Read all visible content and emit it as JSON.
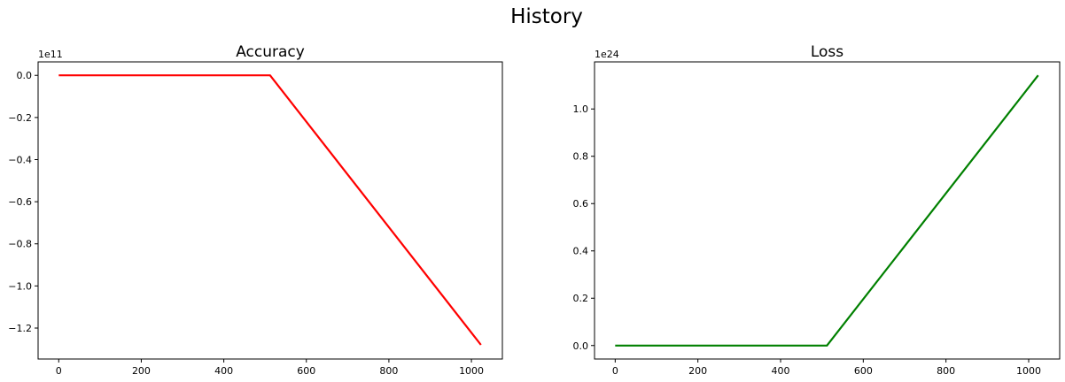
{
  "figure": {
    "suptitle": "History"
  },
  "chart_data": [
    {
      "type": "line",
      "title": "Accuracy",
      "xlabel": "",
      "ylabel": "",
      "y_scale_label": "1e11",
      "y_scale": 100000000000,
      "xlim": [
        -50,
        1075
      ],
      "ylim": [
        -1.347,
        0.064
      ],
      "xticks": [
        0,
        200,
        400,
        600,
        800,
        1000
      ],
      "xtick_labels": [
        "0",
        "200",
        "400",
        "600",
        "800",
        "1000"
      ],
      "yticks": [
        0.0,
        -0.2,
        -0.4,
        -0.6,
        -0.8,
        -1.0,
        -1.2
      ],
      "ytick_labels": [
        "0.0",
        "−0.2",
        "−0.4",
        "−0.6",
        "−0.8",
        "−1.0",
        "−1.2"
      ],
      "grid": false,
      "series": [
        {
          "color": "#ff0000",
          "x": [
            0,
            512,
            1023
          ],
          "y": [
            0.0,
            0.0,
            -1.28
          ]
        }
      ]
    },
    {
      "type": "line",
      "title": "Loss",
      "xlabel": "",
      "ylabel": "",
      "y_scale_label": "1e24",
      "y_scale": 1e+24,
      "xlim": [
        -50,
        1075
      ],
      "ylim": [
        -0.057,
        1.199
      ],
      "xticks": [
        0,
        200,
        400,
        600,
        800,
        1000
      ],
      "xtick_labels": [
        "0",
        "200",
        "400",
        "600",
        "800",
        "1000"
      ],
      "yticks": [
        0.0,
        0.2,
        0.4,
        0.6,
        0.8,
        1.0
      ],
      "ytick_labels": [
        "0.0",
        "0.2",
        "0.4",
        "0.6",
        "0.8",
        "1.0"
      ],
      "grid": false,
      "series": [
        {
          "color": "#008000",
          "x": [
            0,
            512,
            1023
          ],
          "y": [
            0.0,
            0.0,
            1.142
          ]
        }
      ]
    }
  ]
}
